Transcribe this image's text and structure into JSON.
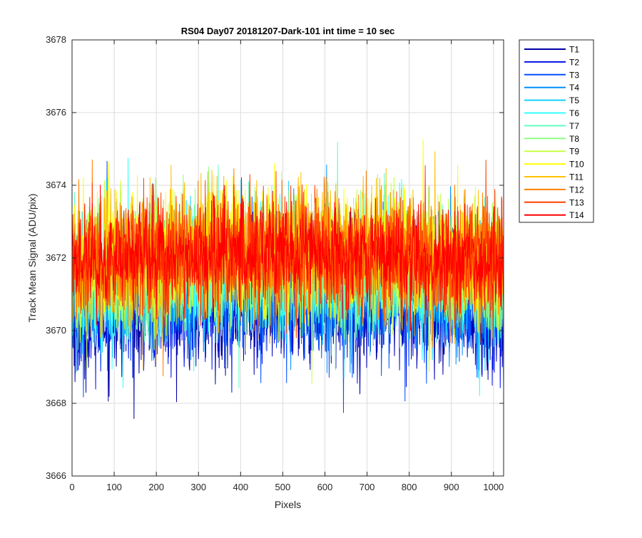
{
  "chart_data": {
    "type": "line",
    "title": "RS04 Day07 20181207-Dark-101 int time = 10 sec",
    "xlabel": "Pixels",
    "ylabel": "Track Mean Signal (ADU/pix)",
    "xlim": [
      0,
      1024
    ],
    "ylim": [
      3666,
      3678
    ],
    "xticks": [
      0,
      100,
      200,
      300,
      400,
      500,
      600,
      700,
      800,
      900,
      1000
    ],
    "yticks": [
      3666,
      3668,
      3670,
      3672,
      3674,
      3676,
      3678
    ],
    "grid": true,
    "legend_position": "outside-top-right",
    "x_start": 1,
    "x_end": 1024,
    "series": [
      {
        "name": "T1",
        "color": "#0000a8",
        "mean": 3670.4,
        "noise": 0.85
      },
      {
        "name": "T2",
        "color": "#0010e8",
        "mean": 3670.6,
        "noise": 0.85
      },
      {
        "name": "T3",
        "color": "#0050ff",
        "mean": 3670.8,
        "noise": 0.85
      },
      {
        "name": "T4",
        "color": "#0090ff",
        "mean": 3671.0,
        "noise": 0.85
      },
      {
        "name": "T5",
        "color": "#10d0ff",
        "mean": 3671.2,
        "noise": 0.85
      },
      {
        "name": "T6",
        "color": "#30ffff",
        "mean": 3671.3,
        "noise": 0.85
      },
      {
        "name": "T7",
        "color": "#60ffc0",
        "mean": 3671.4,
        "noise": 0.85
      },
      {
        "name": "T8",
        "color": "#90ff80",
        "mean": 3671.5,
        "noise": 0.85
      },
      {
        "name": "T9",
        "color": "#c8ff40",
        "mean": 3671.7,
        "noise": 0.85
      },
      {
        "name": "T10",
        "color": "#ffff00",
        "mean": 3671.9,
        "noise": 0.85
      },
      {
        "name": "T11",
        "color": "#ffc000",
        "mean": 3671.9,
        "noise": 0.85
      },
      {
        "name": "T12",
        "color": "#ff8000",
        "mean": 3671.8,
        "noise": 0.85
      },
      {
        "name": "T13",
        "color": "#ff4000",
        "mean": 3671.8,
        "noise": 0.85
      },
      {
        "name": "T14",
        "color": "#ff0000",
        "mean": 3671.8,
        "noise": 0.7
      }
    ]
  }
}
